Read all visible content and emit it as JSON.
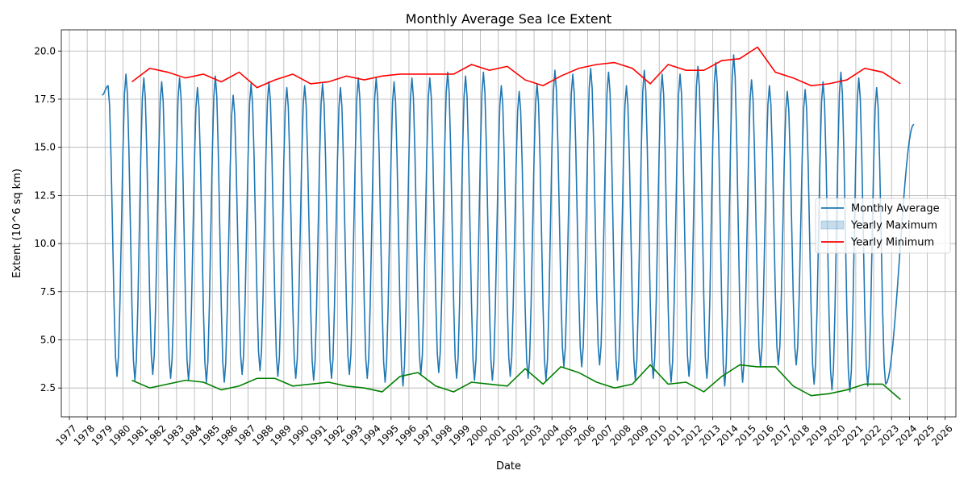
{
  "chart_data": {
    "type": "line",
    "title": "Monthly Average Sea Ice Extent",
    "xlabel": "Date",
    "ylabel": "Extent (10^6 sq km)",
    "xlim": [
      1976.55,
      2026.6
    ],
    "ylim": [
      1.0,
      21.1
    ],
    "grid": true,
    "legend_position": "center-right",
    "x_ticks": [
      1977,
      1978,
      1979,
      1980,
      1981,
      1982,
      1983,
      1984,
      1985,
      1986,
      1987,
      1988,
      1989,
      1990,
      1991,
      1992,
      1993,
      1994,
      1995,
      1996,
      1997,
      1998,
      1999,
      2000,
      2001,
      2002,
      2003,
      2004,
      2005,
      2006,
      2007,
      2008,
      2009,
      2010,
      2011,
      2012,
      2013,
      2014,
      2015,
      2016,
      2017,
      2018,
      2019,
      2020,
      2021,
      2022,
      2023,
      2024,
      2025,
      2026
    ],
    "x_tick_labels": [
      "1977",
      "1978",
      "1979",
      "1980",
      "1981",
      "1982",
      "1983",
      "1984",
      "1985",
      "1986",
      "1987",
      "1988",
      "1989",
      "1990",
      "1991",
      "1992",
      "1993",
      "1994",
      "1995",
      "1996",
      "1997",
      "1998",
      "1999",
      "2000",
      "2001",
      "2002",
      "2003",
      "2004",
      "2005",
      "2006",
      "2007",
      "2008",
      "2009",
      "2010",
      "2011",
      "2012",
      "2013",
      "2014",
      "2015",
      "2016",
      "2017",
      "2018",
      "2019",
      "2020",
      "2021",
      "2022",
      "2023",
      "2024",
      "2025",
      "2026"
    ],
    "y_ticks": [
      2.5,
      5.0,
      7.5,
      10.0,
      12.5,
      15.0,
      17.5,
      20.0
    ],
    "y_tick_labels": [
      "2.5",
      "5.0",
      "7.5",
      "10.0",
      "12.5",
      "15.0",
      "17.5",
      "20.0"
    ],
    "legend": [
      {
        "label": "Monthly Average",
        "kind": "line",
        "color": "#1f77b4"
      },
      {
        "label": "Yearly Maximum",
        "kind": "patch",
        "color": "#1f77b4"
      },
      {
        "label": "Yearly Minimum",
        "kind": "line",
        "color": "#ff0000"
      }
    ],
    "colors": {
      "monthly": "#1f77b4",
      "yearly_max": "#ff0000",
      "yearly_min": "#008000",
      "grid": "#b0b0b0"
    },
    "monthly_average": {
      "start": [
        1978,
        11
      ],
      "end": [
        2024,
        4
      ],
      "annual_maxima": [
        18.2,
        18.8,
        18.6,
        18.4,
        18.6,
        18.1,
        18.7,
        17.7,
        18.3,
        18.4,
        18.1,
        18.2,
        18.3,
        18.1,
        18.6,
        18.6,
        18.4,
        18.6,
        18.6,
        18.9,
        18.7,
        18.9,
        18.2,
        17.9,
        18.3,
        19.0,
        18.8,
        19.1,
        18.9,
        18.2,
        19.0,
        18.8,
        18.8,
        19.2,
        19.4,
        19.8,
        18.5,
        18.2,
        17.9,
        18.0,
        18.4,
        18.9,
        18.6,
        18.1
      ],
      "annual_minima": [
        3.1,
        2.9,
        3.2,
        3.0,
        2.9,
        2.8,
        2.8,
        3.2,
        3.4,
        3.1,
        3.0,
        2.9,
        3.0,
        3.2,
        3.0,
        2.8,
        2.6,
        3.2,
        3.3,
        3.0,
        2.9,
        2.9,
        3.1,
        3.0,
        2.9,
        3.6,
        3.6,
        3.7,
        2.9,
        2.9,
        3.0,
        2.8,
        3.1,
        3.0,
        2.6,
        2.8,
        3.6,
        3.7,
        3.7,
        2.7,
        2.4,
        2.3,
        2.6,
        2.7,
        2.8,
        2.3,
        1.9
      ]
    },
    "yearly_maximum": {
      "x": [
        1980,
        1981,
        1982,
        1983,
        1984,
        1985,
        1986,
        1987,
        1988,
        1989,
        1990,
        1991,
        1992,
        1993,
        1994,
        1995,
        1996,
        1997,
        1998,
        1999,
        2000,
        2001,
        2002,
        2003,
        2004,
        2005,
        2006,
        2007,
        2008,
        2009,
        2010,
        2011,
        2012,
        2013,
        2014,
        2015,
        2016,
        2017,
        2018,
        2019,
        2020,
        2021,
        2022,
        2023
      ],
      "values": [
        18.4,
        19.1,
        18.9,
        18.6,
        18.8,
        18.4,
        18.9,
        18.1,
        18.5,
        18.8,
        18.3,
        18.4,
        18.7,
        18.5,
        18.7,
        18.8,
        18.8,
        18.8,
        18.8,
        19.3,
        19.0,
        19.2,
        18.5,
        18.2,
        18.7,
        19.1,
        19.3,
        19.4,
        19.1,
        18.3,
        19.3,
        19.0,
        19.0,
        19.5,
        19.6,
        20.2,
        18.9,
        18.6,
        18.2,
        18.3,
        18.5,
        19.1,
        18.9,
        18.3
      ]
    },
    "yearly_minimum": {
      "x": [
        1980,
        1981,
        1982,
        1983,
        1984,
        1985,
        1986,
        1987,
        1988,
        1989,
        1990,
        1991,
        1992,
        1993,
        1994,
        1995,
        1996,
        1997,
        1998,
        1999,
        2000,
        2001,
        2002,
        2003,
        2004,
        2005,
        2006,
        2007,
        2008,
        2009,
        2010,
        2011,
        2012,
        2013,
        2014,
        2015,
        2016,
        2017,
        2018,
        2019,
        2020,
        2021,
        2022,
        2023
      ],
      "values": [
        2.9,
        2.5,
        2.7,
        2.9,
        2.8,
        2.4,
        2.6,
        3.0,
        3.0,
        2.6,
        2.7,
        2.8,
        2.6,
        2.5,
        2.3,
        3.1,
        3.3,
        2.6,
        2.3,
        2.8,
        2.7,
        2.6,
        3.5,
        2.7,
        3.6,
        3.3,
        2.8,
        2.5,
        2.7,
        3.7,
        2.7,
        2.8,
        2.3,
        3.1,
        3.7,
        3.6,
        3.6,
        2.6,
        2.1,
        2.2,
        2.4,
        2.7,
        2.7,
        1.9
      ]
    }
  }
}
